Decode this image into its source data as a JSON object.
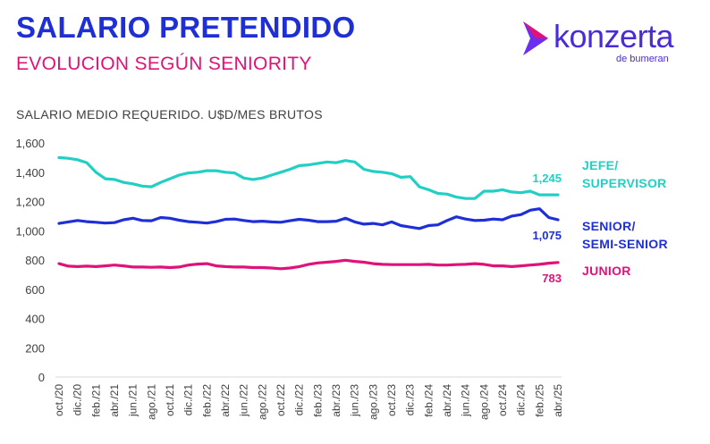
{
  "header": {
    "title": "SALARIO PRETENDIDO",
    "subtitle": "EVOLUCION SEGÚN SENIORITY"
  },
  "logo": {
    "brand": "konzerta",
    "tagline": "de bumeran",
    "icon": "konzerta-chevron-icon"
  },
  "chart_data": {
    "type": "line",
    "title": "SALARIO MEDIO REQUERIDO. U$D/MES BRUTOS",
    "xlabel": "",
    "ylabel": "",
    "ylim": [
      0,
      1600
    ],
    "yticks": [
      "0",
      "200",
      "400",
      "600",
      "800",
      "1,000",
      "1,200",
      "1,400",
      "1,600"
    ],
    "yticks_values": [
      0,
      200,
      400,
      600,
      800,
      1000,
      1200,
      1400,
      1600
    ],
    "grid": false,
    "x": [
      "oct./20",
      "nov./20",
      "dic./20",
      "ene./21",
      "feb./21",
      "mar./21",
      "abr./21",
      "may./21",
      "jun./21",
      "jul./21",
      "ago./21",
      "sept./21",
      "oct./21",
      "nov./21",
      "dic./21",
      "ene./22",
      "feb./22",
      "mar./22",
      "abr./22",
      "may./22",
      "jun./22",
      "jul./22",
      "ago./22",
      "sept./22",
      "oct./22",
      "nov./22",
      "dic./22",
      "ene./23",
      "feb./23",
      "mar./23",
      "abr./23",
      "may./23",
      "jun./23",
      "jul./23",
      "ago./23",
      "sept./23",
      "oct./23",
      "nov./23",
      "dic./23",
      "ene./24",
      "feb./24",
      "mar./24",
      "abr./24",
      "may./24",
      "jun./24",
      "jul./24",
      "ago./24",
      "sept./24",
      "oct./24",
      "nov./24",
      "dic./24",
      "ene./25",
      "feb./25",
      "mar./25",
      "abr./25"
    ],
    "x_tick_labels": [
      "oct./20",
      "dic./20",
      "feb./21",
      "abr./21",
      "jun./21",
      "ago./21",
      "oct./21",
      "dic./21",
      "feb./22",
      "abr./22",
      "jun./22",
      "ago./22",
      "oct./22",
      "dic./22",
      "feb./23",
      "abr./23",
      "jun./23",
      "ago./23",
      "oct./23",
      "dic./23",
      "feb./24",
      "abr./24",
      "jun./24",
      "ago./24",
      "oct./24",
      "dic./24",
      "feb./25",
      "abr./25"
    ],
    "series": [
      {
        "name": "JEFE/ SUPERVISOR",
        "label_lines": [
          "JEFE/",
          "SUPERVISOR"
        ],
        "end_label": "1,245",
        "color": "#22cfc4",
        "values": [
          1500,
          1495,
          1485,
          1465,
          1400,
          1355,
          1350,
          1330,
          1320,
          1305,
          1300,
          1330,
          1355,
          1380,
          1395,
          1400,
          1410,
          1410,
          1400,
          1395,
          1360,
          1350,
          1360,
          1380,
          1400,
          1420,
          1445,
          1450,
          1460,
          1470,
          1465,
          1480,
          1470,
          1420,
          1405,
          1400,
          1390,
          1365,
          1370,
          1300,
          1280,
          1255,
          1250,
          1230,
          1220,
          1220,
          1270,
          1270,
          1280,
          1265,
          1260,
          1270,
          1245,
          1245,
          1245
        ]
      },
      {
        "name": "SENIOR/ SEMI-SENIOR",
        "label_lines": [
          "SENIOR/",
          "SEMI-SENIOR"
        ],
        "end_label": "1,075",
        "color": "#1f2fd6",
        "values": [
          1050,
          1060,
          1070,
          1062,
          1058,
          1052,
          1055,
          1075,
          1085,
          1070,
          1068,
          1090,
          1085,
          1072,
          1062,
          1058,
          1052,
          1062,
          1078,
          1080,
          1070,
          1062,
          1065,
          1060,
          1058,
          1068,
          1078,
          1072,
          1062,
          1062,
          1065,
          1085,
          1060,
          1045,
          1050,
          1040,
          1060,
          1035,
          1025,
          1015,
          1035,
          1040,
          1070,
          1095,
          1080,
          1070,
          1072,
          1080,
          1075,
          1100,
          1110,
          1140,
          1150,
          1090,
          1075
        ]
      },
      {
        "name": "JUNIOR",
        "label_lines": [
          "JUNIOR"
        ],
        "end_label": "783",
        "color": "#e0127a",
        "values": [
          775,
          758,
          755,
          758,
          755,
          760,
          765,
          760,
          752,
          752,
          750,
          752,
          748,
          752,
          765,
          772,
          775,
          760,
          755,
          752,
          752,
          748,
          748,
          745,
          740,
          745,
          755,
          770,
          780,
          785,
          790,
          798,
          790,
          785,
          775,
          770,
          768,
          768,
          768,
          768,
          770,
          765,
          765,
          768,
          770,
          775,
          770,
          760,
          760,
          755,
          760,
          765,
          770,
          778,
          783
        ]
      }
    ]
  }
}
